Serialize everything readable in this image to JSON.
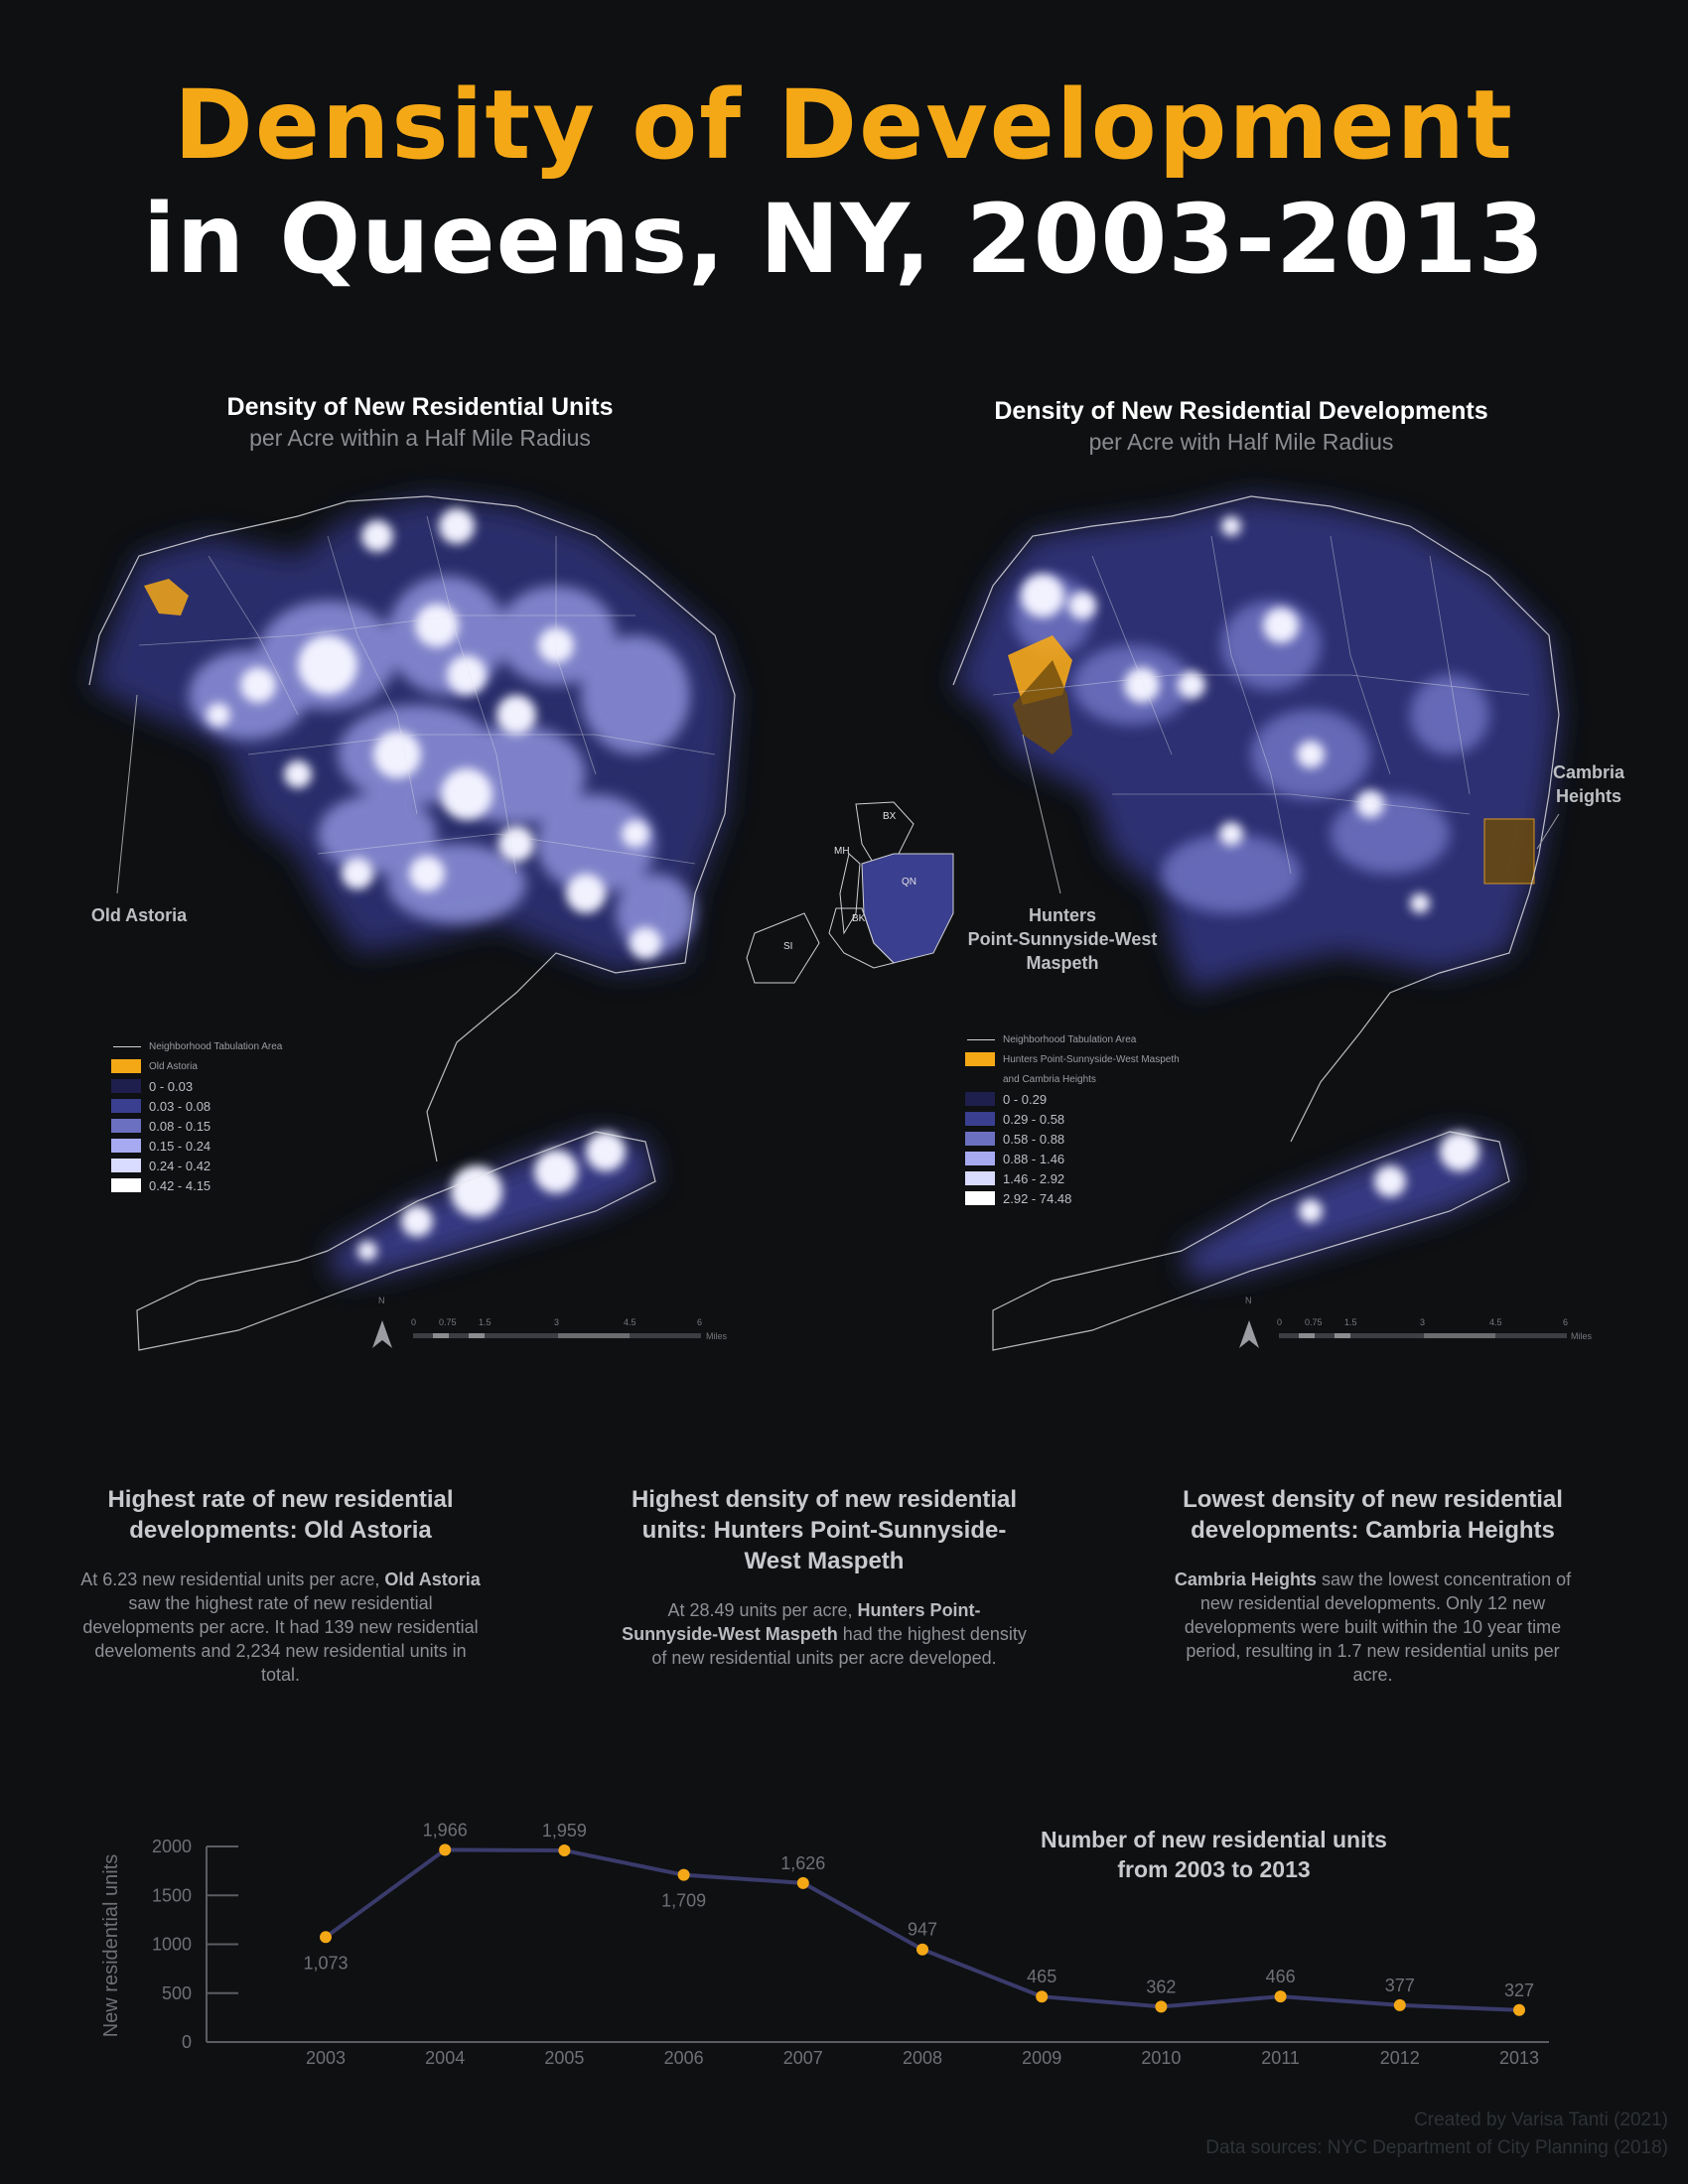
{
  "title": {
    "line1": "Density of Development",
    "line2": "in Queens, NY, 2003-2013"
  },
  "colors": {
    "accent": "#f5a816",
    "background": "#0e1012",
    "line": "#3a3b6b",
    "density_scale": [
      "#1e1f4c",
      "#3a3f8f",
      "#6c70c0",
      "#a7aaf0",
      "#d9dbff",
      "#ffffff"
    ]
  },
  "map_left": {
    "title": "Density of New Residential Units",
    "subtitle": "per Acre within a Half Mile Radius",
    "label_old_astoria": "Old Astoria",
    "legend": {
      "nta": "Neighborhood Tabulation Area",
      "highlight": "Old Astoria",
      "classes": [
        "0 - 0.03",
        "0.03 - 0.08",
        "0.08 - 0.15",
        "0.15 - 0.24",
        "0.24 - 0.42",
        "0.42 - 4.15"
      ]
    },
    "scale": {
      "north": "N",
      "ticks": [
        "0",
        "0.75",
        "1.5",
        "3",
        "4.5",
        "6"
      ],
      "unit": "Miles"
    }
  },
  "map_right": {
    "title": "Density of New Residential Developments",
    "subtitle": "per Acre with Half Mile Radius",
    "label_cambria": "Cambria\nHeights",
    "label_hunters": "Hunters\nPoint-Sunnyside-West\nMaspeth",
    "legend": {
      "nta": "Neighborhood Tabulation Area",
      "highlight": "Hunters Point-Sunnyside-West Maspeth",
      "highlight2": "and Cambria Heights",
      "classes": [
        "0 - 0.29",
        "0.29 - 0.58",
        "0.58 - 0.88",
        "0.88 - 1.46",
        "1.46 - 2.92",
        "2.92 - 74.48"
      ]
    },
    "scale": {
      "north": "N",
      "ticks": [
        "0",
        "0.75",
        "1.5",
        "3",
        "4.5",
        "6"
      ],
      "unit": "Miles"
    }
  },
  "inset": {
    "labels": [
      "BX",
      "MH",
      "QN",
      "BK",
      "SI"
    ]
  },
  "findings": [
    {
      "title": "Highest rate of new residential developments: Old Astoria",
      "pre": "At 6.23 new residential units per acre, ",
      "bold": "Old Astoria",
      "post": " saw the highest rate of new residential developments per acre. It had 139 new residential develoments and 2,234 new residential units in total."
    },
    {
      "title": "Highest density of new residential units: Hunters Point-Sunnyside-West Maspeth",
      "pre": "At 28.49 units per acre, ",
      "bold": "Hunters Point-Sunnyside-West Maspeth",
      "post": " had the highest density of new residential units per acre developed."
    },
    {
      "title": "Lowest density of new residential developments: Cambria Heights",
      "pre": "",
      "bold": "Cambria Heights",
      "post": " saw the lowest concentration of new residential developments. Only 12 new developments were built within the 10 year time period, resulting in 1.7 new residential units per acre."
    }
  ],
  "chart_data": {
    "type": "line",
    "title": "Number of new residential units\nfrom 2003 to 2013",
    "xlabel": "",
    "ylabel": "New residential units",
    "categories": [
      "2003",
      "2004",
      "2005",
      "2006",
      "2007",
      "2008",
      "2009",
      "2010",
      "2011",
      "2012",
      "2013"
    ],
    "values": [
      1073,
      1966,
      1959,
      1709,
      1626,
      947,
      465,
      362,
      466,
      377,
      327
    ],
    "data_labels": [
      "1,073",
      "1,966",
      "1,959",
      "1,709",
      "1,626",
      "947",
      "465",
      "362",
      "466",
      "377",
      "327"
    ],
    "yticks": [
      0,
      500,
      1000,
      1500,
      2000
    ],
    "ylim": [
      0,
      2000
    ],
    "grid": false
  },
  "credits": {
    "line1": "Created by Varisa Tanti (2021)",
    "line2": "Data sources: NYC Department of  City Planning (2018)"
  }
}
